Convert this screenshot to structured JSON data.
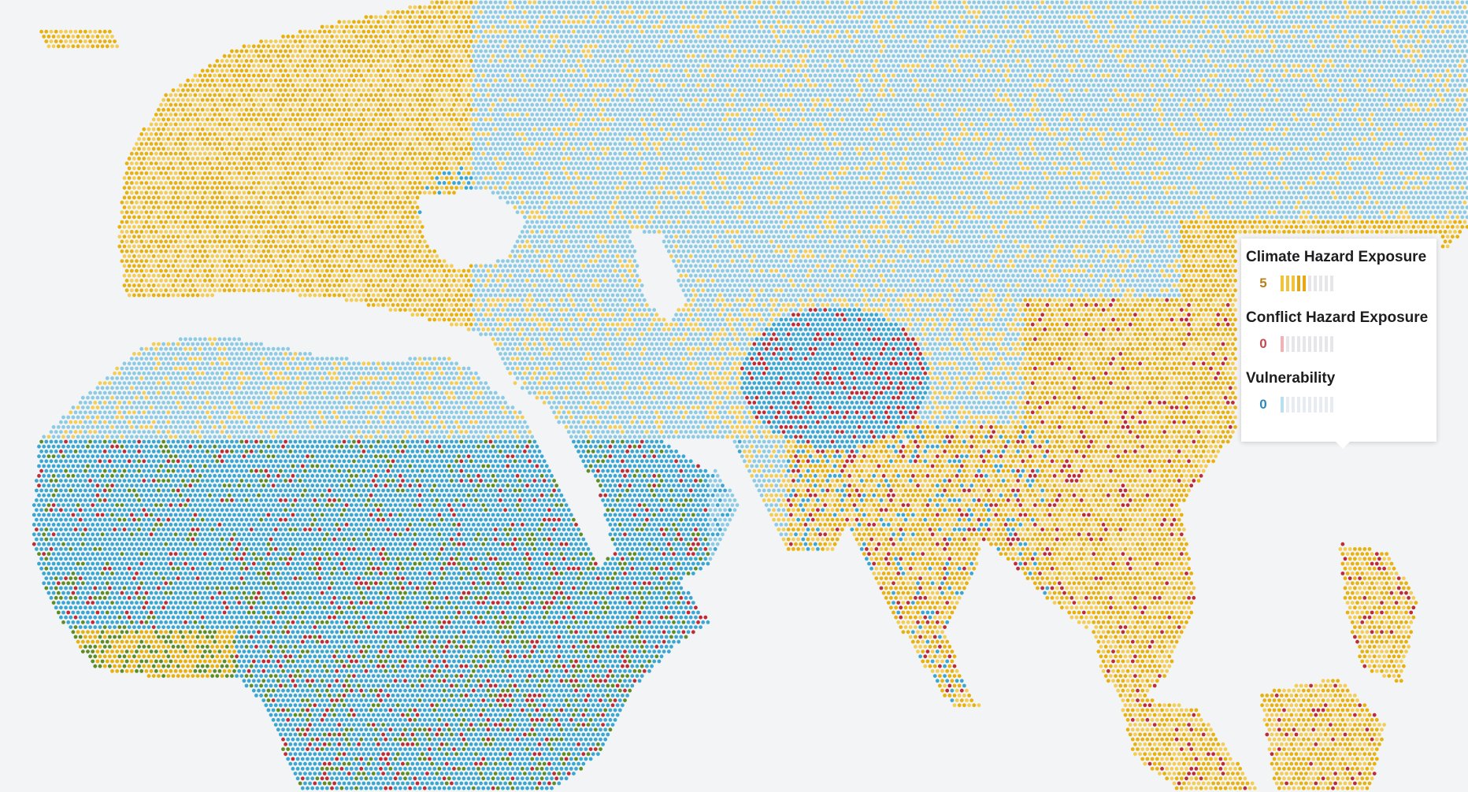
{
  "map": {
    "background_color": "#f3f4f6",
    "palette": {
      "climate": "#e8b10c",
      "climate_light": "#f3cd54",
      "conflict": "#c02c35",
      "vulnerability": "#3aa7d3",
      "vulnerability_light": "#8dcbe5",
      "mixed_green": "#5e8d24",
      "dark": "#3b2a22"
    }
  },
  "tooltip": {
    "sections": [
      {
        "key": "climate",
        "title": "Climate Hazard Exposure",
        "value": "5",
        "level": 5
      },
      {
        "key": "conflict",
        "title": "Conflict Hazard Exposure",
        "value": "0",
        "level": 0
      },
      {
        "key": "vuln",
        "title": "Vulnerability",
        "value": "0",
        "level": 0
      }
    ]
  }
}
